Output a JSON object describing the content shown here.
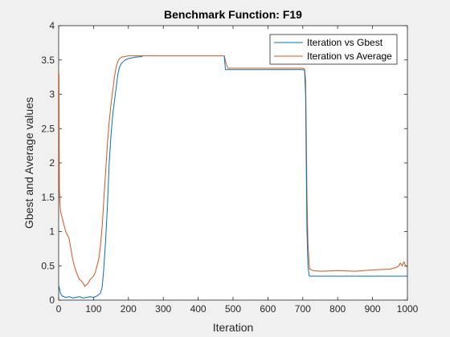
{
  "chart_data": {
    "type": "line",
    "title": "Benchmark Function: F19",
    "xlabel": "Iteration",
    "ylabel": "Gbest and Average values",
    "xlim": [
      0,
      1000
    ],
    "ylim": [
      0,
      4
    ],
    "xticks": [
      0,
      100,
      200,
      300,
      400,
      500,
      600,
      700,
      800,
      900,
      1000
    ],
    "yticks": [
      0,
      0.5,
      1,
      1.5,
      2,
      2.5,
      3,
      3.5,
      4
    ],
    "grid": false,
    "legend_position": "top-right",
    "series": [
      {
        "name": "Iteration vs Gbest",
        "color": "#0072BD",
        "points": [
          [
            1,
            0.2
          ],
          [
            5,
            0.1
          ],
          [
            10,
            0.06
          ],
          [
            20,
            0.04
          ],
          [
            30,
            0.05
          ],
          [
            40,
            0.03
          ],
          [
            50,
            0.04
          ],
          [
            60,
            0.05
          ],
          [
            70,
            0.03
          ],
          [
            80,
            0.04
          ],
          [
            90,
            0.05
          ],
          [
            100,
            0.04
          ],
          [
            110,
            0.06
          ],
          [
            120,
            0.1
          ],
          [
            125,
            0.2
          ],
          [
            130,
            0.5
          ],
          [
            135,
            0.9
          ],
          [
            140,
            1.4
          ],
          [
            145,
            2.0
          ],
          [
            150,
            2.4
          ],
          [
            155,
            2.7
          ],
          [
            160,
            2.9
          ],
          [
            165,
            3.1
          ],
          [
            170,
            3.3
          ],
          [
            175,
            3.4
          ],
          [
            180,
            3.45
          ],
          [
            190,
            3.5
          ],
          [
            200,
            3.52
          ],
          [
            220,
            3.54
          ],
          [
            240,
            3.55
          ]
        ]
      },
      {
        "name": "Iteration vs Average",
        "color": "#D95319",
        "points": [
          [
            1,
            3.3
          ],
          [
            2,
            1.6
          ],
          [
            5,
            1.3
          ],
          [
            10,
            1.2
          ],
          [
            15,
            1.1
          ],
          [
            20,
            1.0
          ],
          [
            25,
            0.95
          ],
          [
            30,
            0.9
          ],
          [
            35,
            0.75
          ],
          [
            40,
            0.6
          ],
          [
            45,
            0.5
          ],
          [
            50,
            0.42
          ],
          [
            55,
            0.35
          ],
          [
            60,
            0.3
          ],
          [
            65,
            0.28
          ],
          [
            70,
            0.25
          ],
          [
            75,
            0.2
          ],
          [
            80,
            0.22
          ],
          [
            85,
            0.25
          ],
          [
            90,
            0.3
          ],
          [
            95,
            0.32
          ],
          [
            100,
            0.35
          ],
          [
            105,
            0.4
          ],
          [
            110,
            0.5
          ],
          [
            115,
            0.6
          ],
          [
            120,
            0.8
          ],
          [
            125,
            1.1
          ],
          [
            130,
            1.5
          ],
          [
            135,
            1.9
          ],
          [
            140,
            2.3
          ],
          [
            145,
            2.6
          ],
          [
            150,
            2.85
          ],
          [
            155,
            3.05
          ],
          [
            160,
            3.25
          ],
          [
            165,
            3.4
          ],
          [
            170,
            3.48
          ],
          [
            175,
            3.52
          ],
          [
            180,
            3.54
          ],
          [
            190,
            3.55
          ],
          [
            200,
            3.56
          ],
          [
            300,
            3.56
          ],
          [
            400,
            3.56
          ],
          [
            470,
            3.56
          ],
          [
            475,
            3.56
          ],
          [
            480,
            3.45
          ],
          [
            485,
            3.38
          ],
          [
            490,
            3.38
          ],
          [
            500,
            3.38
          ],
          [
            600,
            3.38
          ],
          [
            700,
            3.38
          ],
          [
            705,
            3.37
          ],
          [
            708,
            3.2
          ],
          [
            710,
            2.5
          ],
          [
            712,
            1.5
          ],
          [
            715,
            0.8
          ],
          [
            718,
            0.55
          ],
          [
            720,
            0.45
          ],
          [
            730,
            0.43
          ],
          [
            750,
            0.42
          ],
          [
            800,
            0.43
          ],
          [
            850,
            0.42
          ],
          [
            900,
            0.44
          ],
          [
            950,
            0.45
          ],
          [
            970,
            0.48
          ],
          [
            975,
            0.5
          ],
          [
            980,
            0.54
          ],
          [
            985,
            0.5
          ],
          [
            990,
            0.56
          ],
          [
            995,
            0.5
          ],
          [
            1000,
            0.48
          ]
        ]
      },
      {
        "name": "Iteration vs Gbest (cont.)",
        "color": "#0072BD",
        "legend": false,
        "points": [
          [
            475,
            3.56
          ],
          [
            478,
            3.36
          ],
          [
            500,
            3.36
          ],
          [
            600,
            3.36
          ],
          [
            700,
            3.36
          ],
          [
            705,
            3.35
          ],
          [
            708,
            3.0
          ],
          [
            710,
            2.0
          ],
          [
            712,
            1.0
          ],
          [
            715,
            0.5
          ],
          [
            718,
            0.36
          ],
          [
            720,
            0.35
          ],
          [
            800,
            0.35
          ],
          [
            900,
            0.35
          ],
          [
            1000,
            0.35
          ]
        ]
      }
    ]
  }
}
